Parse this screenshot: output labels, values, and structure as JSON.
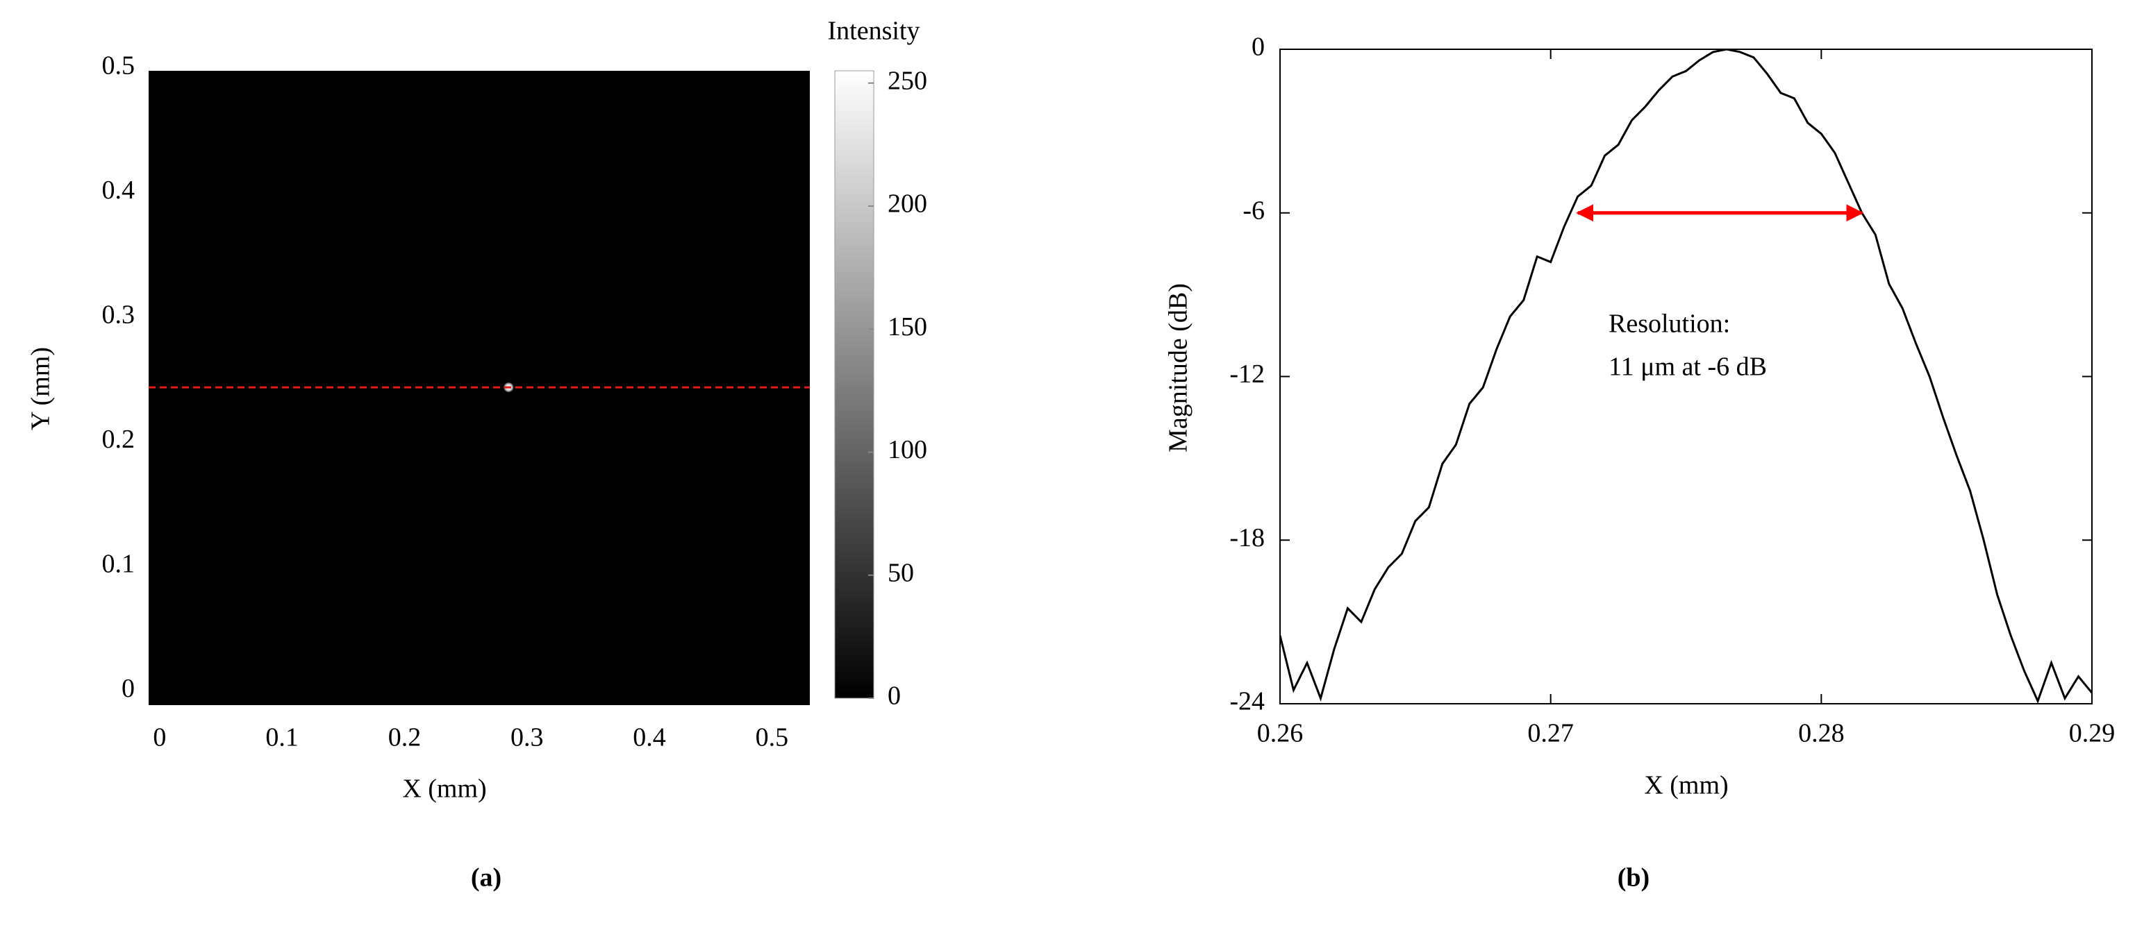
{
  "chart_data": [
    {
      "type": "heatmap",
      "label": "(a)",
      "xlabel": "X (mm)",
      "ylabel": "Y (mm)",
      "xlim": [
        -0.009,
        0.531
      ],
      "ylim": [
        -0.007,
        0.502
      ],
      "xticks": [
        0,
        0.1,
        0.2,
        0.3,
        0.4,
        0.5
      ],
      "yticks": [
        0,
        0.1,
        0.2,
        0.3,
        0.4,
        0.5
      ],
      "background": 0,
      "x": [
        0.285
      ],
      "y": [
        0.248
      ],
      "values": [
        250
      ],
      "profile_y": 0.248,
      "profile_color": "#e31a1c",
      "colorbar": {
        "title": "Intensity",
        "lim": [
          0,
          255
        ],
        "ticks": [
          0,
          50,
          100,
          150,
          200,
          250
        ],
        "colors": [
          "#000000",
          "#ffffff"
        ]
      }
    },
    {
      "type": "line",
      "label": "(b)",
      "xlabel": "X (mm)",
      "ylabel": "Magnitude (dB)",
      "xlim": [
        0.26,
        0.29
      ],
      "ylim": [
        -24,
        0
      ],
      "xticks": [
        0.26,
        0.27,
        0.28,
        0.29
      ],
      "yticks": [
        0,
        -6,
        -12,
        -18,
        -24
      ],
      "color": "#000000",
      "x": [
        0.26,
        0.2605,
        0.261,
        0.2615,
        0.262,
        0.2625,
        0.263,
        0.2635,
        0.264,
        0.2645,
        0.265,
        0.2655,
        0.266,
        0.2665,
        0.267,
        0.2675,
        0.268,
        0.2685,
        0.269,
        0.2695,
        0.27,
        0.2705,
        0.271,
        0.2715,
        0.272,
        0.2725,
        0.273,
        0.2735,
        0.274,
        0.2745,
        0.275,
        0.2755,
        0.276,
        0.2765,
        0.277,
        0.2775,
        0.278,
        0.2785,
        0.279,
        0.2795,
        0.28,
        0.2805,
        0.281,
        0.2815,
        0.282,
        0.2825,
        0.283,
        0.2835,
        0.284,
        0.2845,
        0.285,
        0.2855,
        0.286,
        0.2865,
        0.287,
        0.2875,
        0.288,
        0.2885,
        0.289,
        0.2895,
        0.29
      ],
      "values": [
        -21.5,
        -23.5,
        -22.5,
        -23.8,
        -22.0,
        -20.5,
        -21.0,
        -19.8,
        -19.0,
        -18.5,
        -17.3,
        -16.8,
        -15.2,
        -14.5,
        -13.0,
        -12.4,
        -11.0,
        -9.8,
        -9.2,
        -7.6,
        -7.8,
        -6.5,
        -5.4,
        -5.0,
        -3.9,
        -3.5,
        -2.6,
        -2.1,
        -1.5,
        -1.0,
        -0.8,
        -0.4,
        -0.1,
        0,
        -0.1,
        -0.3,
        -0.9,
        -1.6,
        -1.8,
        -2.7,
        -3.1,
        -3.8,
        -4.9,
        -6.0,
        -6.8,
        -8.6,
        -9.5,
        -10.8,
        -12.0,
        -13.5,
        -14.9,
        -16.2,
        -18.0,
        -20.0,
        -21.5,
        -22.8,
        -23.9,
        -22.5,
        -23.8,
        -23.0,
        -23.6
      ],
      "annotation": {
        "text": [
          "Resolution:",
          "11 μm at -6 dB"
        ],
        "color": "#ff0000",
        "arrow": {
          "x": [
            0.271,
            0.2815
          ],
          "y": -6
        }
      }
    }
  ]
}
